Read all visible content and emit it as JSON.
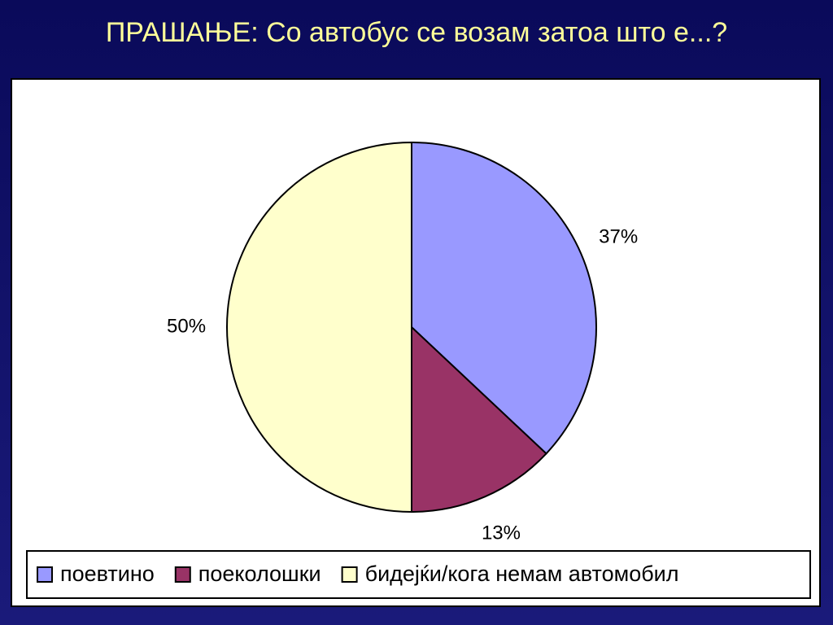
{
  "chart_data": {
    "type": "pie",
    "title": "ПРАШАЊЕ: Со автобус се возам затоа што е...?",
    "categories": [
      "поевтино",
      "поеколошки",
      "бидејќи/кога немам автомобил"
    ],
    "values": [
      37,
      13,
      50
    ],
    "value_labels": [
      "37%",
      "13%",
      "50%"
    ],
    "colors": [
      "#9999ff",
      "#993366",
      "#ffffcc"
    ],
    "legend": "bottom"
  }
}
